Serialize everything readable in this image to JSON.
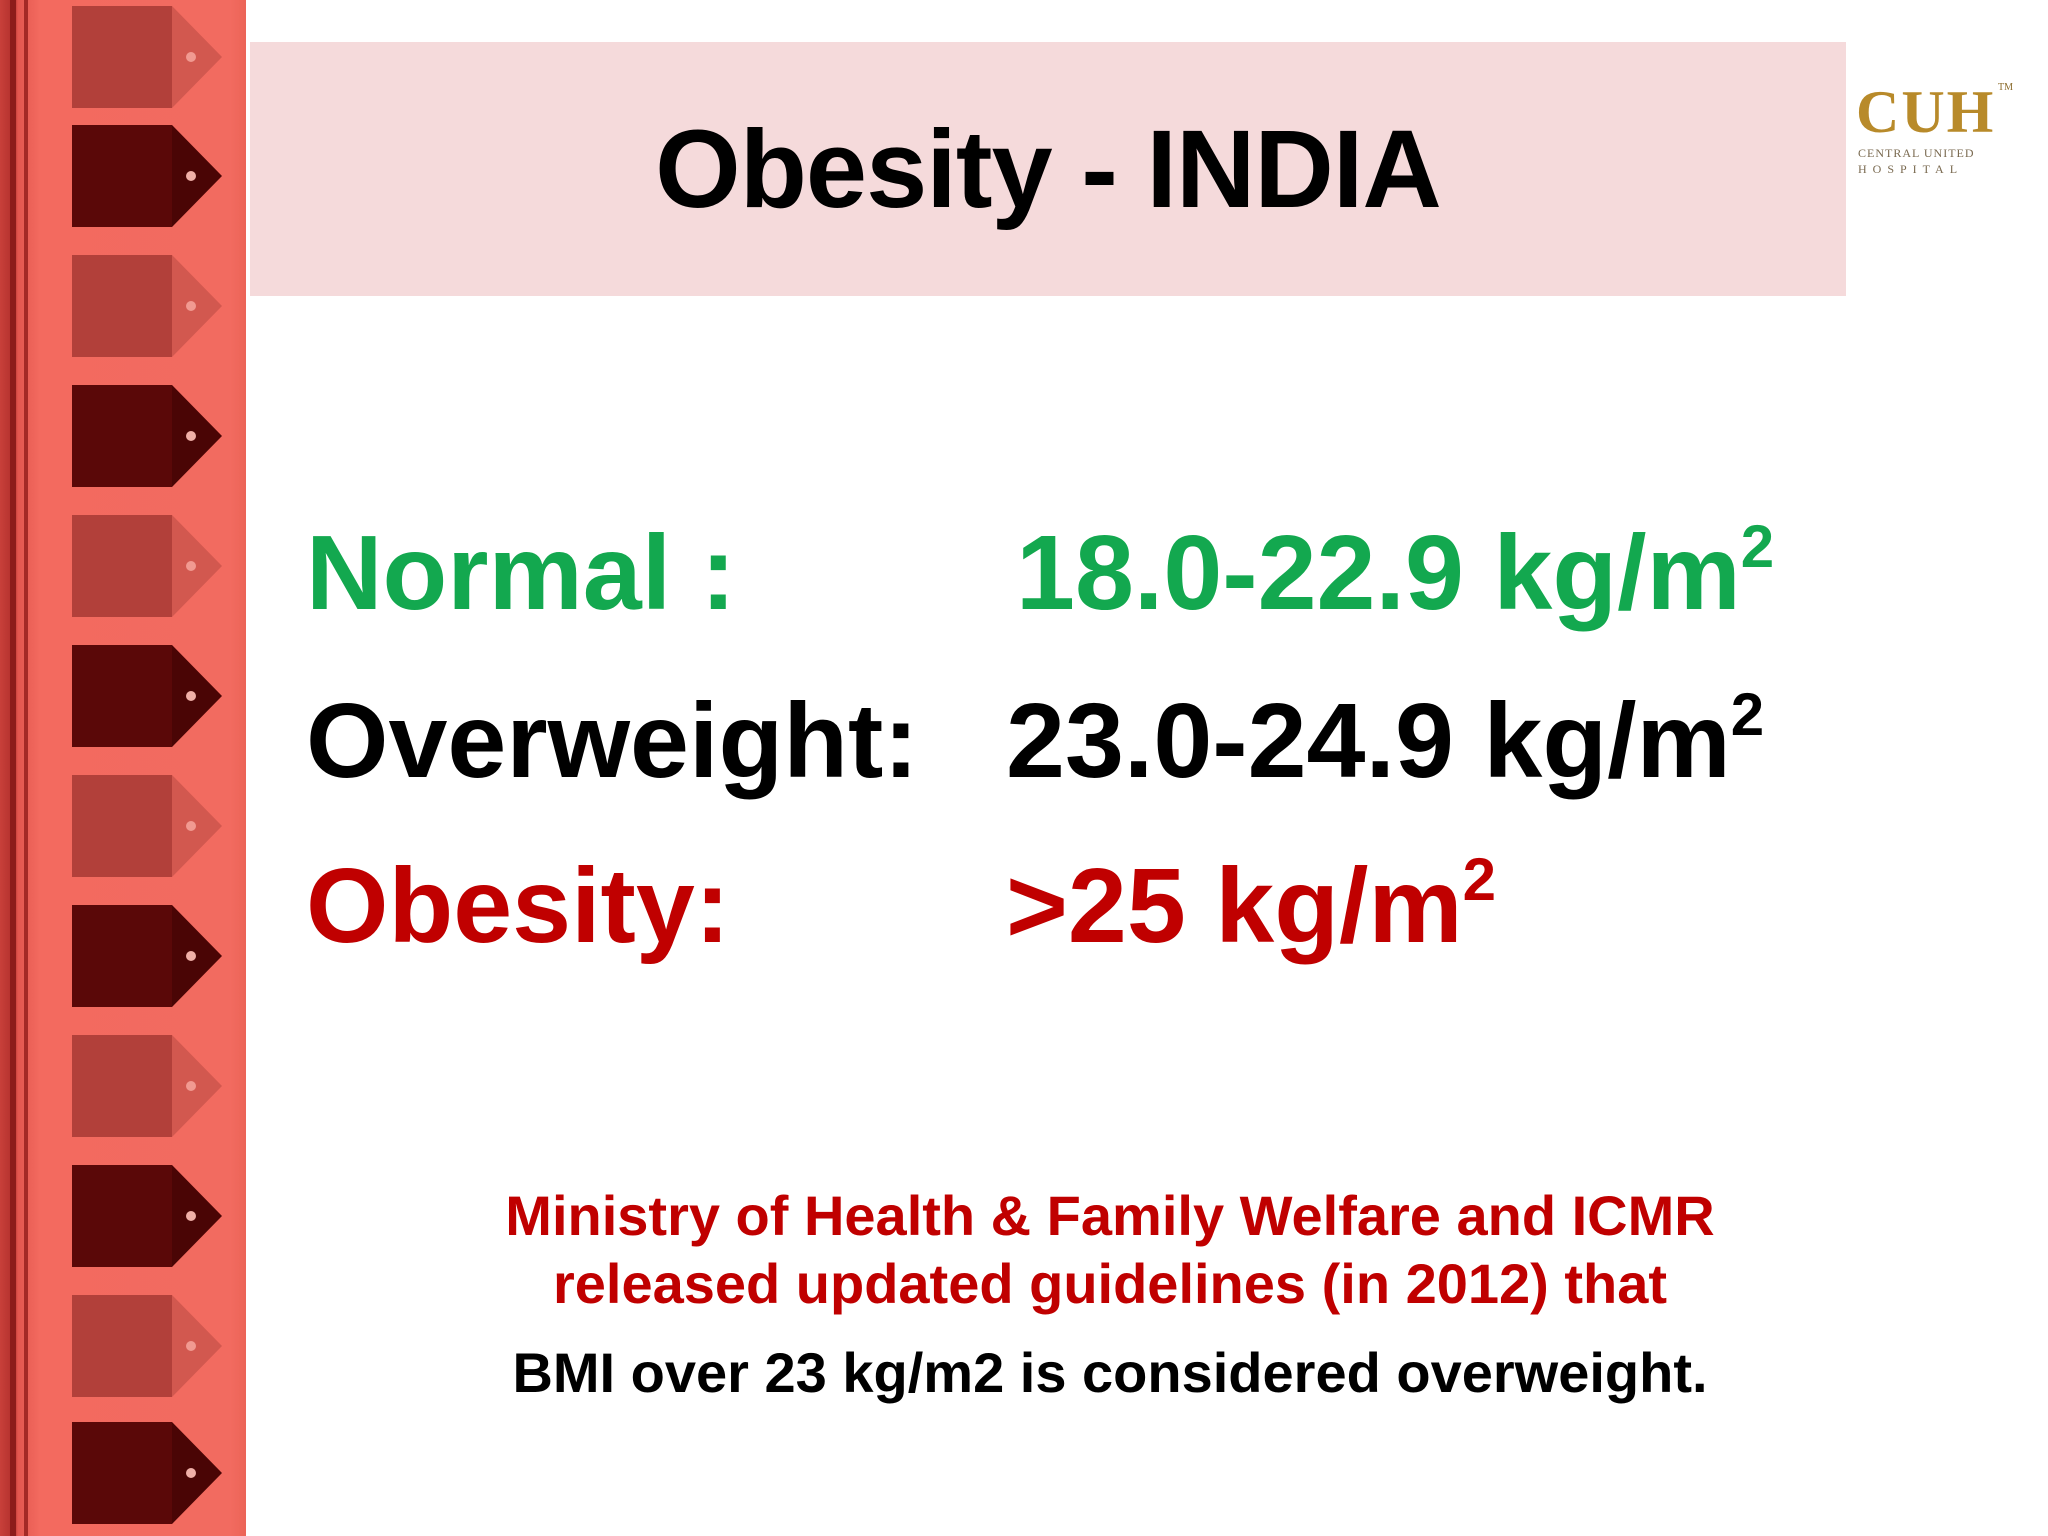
{
  "title": "Obesity - INDIA",
  "logo": {
    "mark": "CUH",
    "tm": "TM",
    "line1": "CENTRAL UNITED",
    "line2": "HOSPITAL"
  },
  "bmi_rows": [
    {
      "label": "Normal :",
      "value": "18.0-22.9 kg/m",
      "sup": "2",
      "color": "#13a84f"
    },
    {
      "label": "Overweight:",
      "value": "23.0-24.9 kg/m",
      "sup": "2",
      "color": "#000000"
    },
    {
      "label": "Obesity:",
      "value": ">25 kg/m",
      "sup": "2",
      "color": "#c00000"
    }
  ],
  "note": {
    "line1": "Ministry of Health & Family Welfare and ICMR",
    "line2": "released updated guidelines (in 2012) that",
    "line3": "BMI over 23 kg/m2 is considered overweight."
  },
  "colors": {
    "title_bg": "#f5dadb",
    "side_strip": "#f26b60",
    "accent_red": "#c00000",
    "accent_green": "#13a84f"
  }
}
